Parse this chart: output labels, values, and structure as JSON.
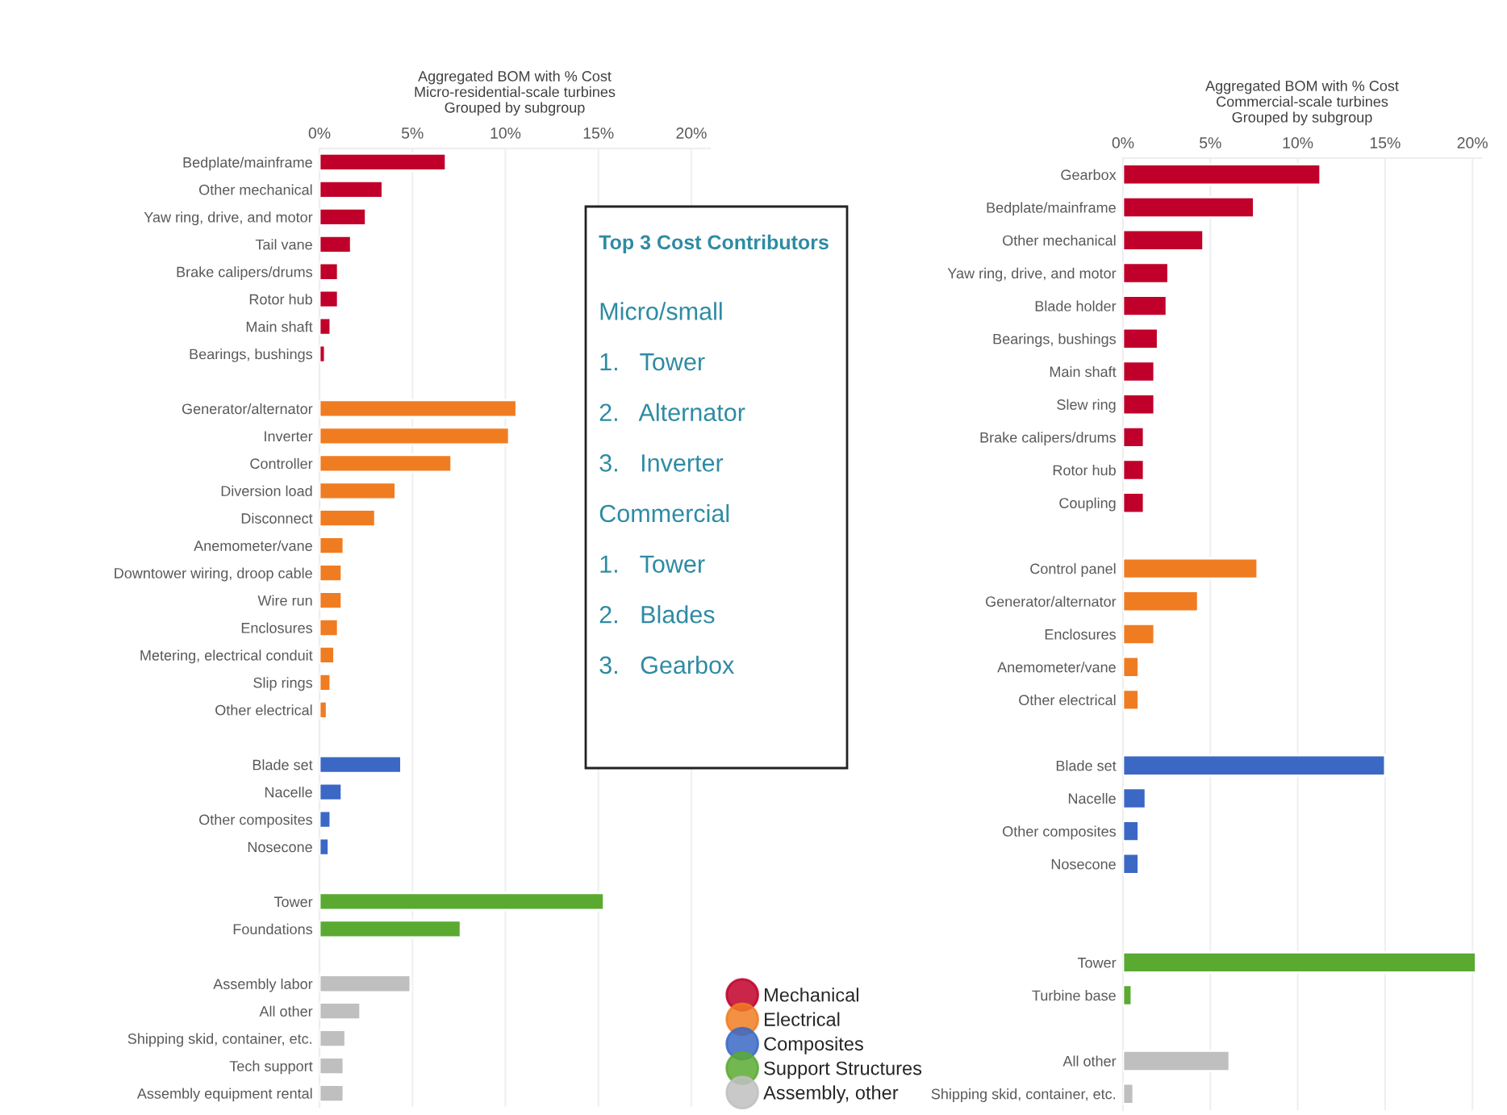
{
  "chart_data": [
    {
      "type": "bar",
      "orientation": "horizontal",
      "title": "Aggregated BOM with % Cost",
      "subtitle": "Micro-residential-scale turbines\nGrouped by subgroup",
      "categories": [
        "Bedplate/mainframe",
        "Other mechanical",
        "Yaw ring, drive, and motor",
        "Tail vane",
        "Brake calipers/drums",
        "Rotor hub",
        "Main shaft",
        "Bearings, bushings",
        null,
        "Generator/alternator",
        "Inverter",
        "Controller",
        "Diversion load",
        "Disconnect",
        "Anemometer/vane",
        "Downtower wiring, droop cable",
        "Wire run",
        "Enclosures",
        "Metering, electrical conduit",
        "Slip rings",
        "Other electrical",
        null,
        "Blade set",
        "Nacelle",
        "Other composites",
        "Nosecone",
        null,
        "Tower",
        "Foundations",
        null,
        "Assembly labor",
        "All other",
        "Shipping skid, container, etc.",
        "Tech support",
        "Assembly equipment rental"
      ],
      "series": [
        {
          "name": "Mechanical",
          "color": "#c0002a",
          "values": [
            6.8,
            3.4,
            2.5,
            1.7,
            1.0,
            1.0,
            0.6,
            0.3,
            null,
            null,
            null,
            null,
            null,
            null,
            null,
            null,
            null,
            null,
            null,
            null,
            null,
            null,
            null,
            null,
            null,
            null,
            null,
            null,
            null,
            null,
            null,
            null,
            null,
            null,
            null
          ]
        },
        {
          "name": "Electrical",
          "color": "#f07c22",
          "values": [
            null,
            null,
            null,
            null,
            null,
            null,
            null,
            null,
            null,
            10.6,
            10.2,
            7.1,
            4.1,
            3.0,
            1.3,
            1.2,
            1.2,
            1.0,
            0.8,
            0.6,
            0.4,
            null,
            null,
            null,
            null,
            null,
            null,
            null,
            null,
            null,
            null,
            null,
            null,
            null,
            null
          ]
        },
        {
          "name": "Composites",
          "color": "#3a68c4",
          "values": [
            null,
            null,
            null,
            null,
            null,
            null,
            null,
            null,
            null,
            null,
            null,
            null,
            null,
            null,
            null,
            null,
            null,
            null,
            null,
            null,
            null,
            null,
            4.4,
            1.2,
            0.6,
            0.5,
            null,
            null,
            null,
            null,
            null,
            null,
            null,
            null,
            null
          ]
        },
        {
          "name": "Support Structures",
          "color": "#5aaa32",
          "values": [
            null,
            null,
            null,
            null,
            null,
            null,
            null,
            null,
            null,
            null,
            null,
            null,
            null,
            null,
            null,
            null,
            null,
            null,
            null,
            null,
            null,
            null,
            null,
            null,
            null,
            null,
            null,
            15.3,
            7.6,
            null,
            null,
            null,
            null,
            null,
            null
          ]
        },
        {
          "name": "Assembly, other",
          "color": "#bfbfbf",
          "values": [
            null,
            null,
            null,
            null,
            null,
            null,
            null,
            null,
            null,
            null,
            null,
            null,
            null,
            null,
            null,
            null,
            null,
            null,
            null,
            null,
            null,
            null,
            null,
            null,
            null,
            null,
            null,
            null,
            null,
            null,
            4.9,
            2.2,
            1.4,
            1.3,
            1.3
          ]
        }
      ],
      "xlim": [
        0,
        21
      ],
      "xticks": [
        {
          "value": 0,
          "label": "0%"
        },
        {
          "value": 5,
          "label": "5%"
        },
        {
          "value": 10,
          "label": "10%"
        },
        {
          "value": 15,
          "label": "15%"
        },
        {
          "value": 20,
          "label": "20%"
        }
      ],
      "grid": "x",
      "legend": "bottom right"
    },
    {
      "type": "bar",
      "orientation": "horizontal",
      "title": "Aggregated BOM with % Cost",
      "subtitle": "Commercial-scale turbines\nGrouped by subgroup",
      "categories": [
        "Gearbox",
        "Bedplate/mainframe",
        "Other mechanical",
        "Yaw ring, drive, and motor",
        "Blade holder",
        "Bearings, bushings",
        "Main shaft",
        "Slew ring",
        "Brake calipers/drums",
        "Rotor hub",
        "Coupling",
        null,
        "Control panel",
        "Generator/alternator",
        "Enclosures",
        "Anemometer/vane",
        "Other electrical",
        null,
        "Blade set",
        "Nacelle",
        "Other composites",
        "Nosecone",
        null,
        null,
        "Tower",
        "Turbine base",
        null,
        "All other",
        "Shipping skid, container, etc."
      ],
      "series": [
        {
          "color": "#c0002a",
          "values": [
            11.3,
            7.5,
            4.6,
            2.6,
            2.5,
            2.0,
            1.8,
            1.8,
            1.2,
            1.2,
            1.2,
            null,
            null,
            null,
            null,
            null,
            null,
            null,
            null,
            null,
            null,
            null,
            null,
            null,
            null,
            null,
            null,
            null,
            null
          ]
        },
        {
          "color": "#f07c22",
          "values": [
            null,
            null,
            null,
            null,
            null,
            null,
            null,
            null,
            null,
            null,
            null,
            null,
            7.7,
            4.3,
            1.8,
            0.9,
            0.9,
            null,
            null,
            null,
            null,
            null,
            null,
            null,
            null,
            null,
            null,
            null,
            null
          ]
        },
        {
          "color": "#3a68c4",
          "values": [
            null,
            null,
            null,
            null,
            null,
            null,
            null,
            null,
            null,
            null,
            null,
            null,
            null,
            null,
            null,
            null,
            null,
            null,
            15.0,
            1.3,
            0.9,
            0.9,
            null,
            null,
            null,
            null,
            null,
            null,
            null
          ]
        },
        {
          "color": "#5aaa32",
          "values": [
            null,
            null,
            null,
            null,
            null,
            null,
            null,
            null,
            null,
            null,
            null,
            null,
            null,
            null,
            null,
            null,
            null,
            null,
            null,
            null,
            null,
            null,
            null,
            null,
            20.2,
            0.5,
            null,
            null,
            null
          ]
        },
        {
          "color": "#bfbfbf",
          "values": [
            null,
            null,
            null,
            null,
            null,
            null,
            null,
            null,
            null,
            null,
            null,
            null,
            null,
            null,
            null,
            null,
            null,
            null,
            null,
            null,
            null,
            null,
            null,
            null,
            null,
            null,
            null,
            6.1,
            0.6
          ]
        }
      ],
      "xlim": [
        0,
        20.5
      ],
      "xticks": [
        {
          "value": 0,
          "label": "0%"
        },
        {
          "value": 5,
          "label": "5%"
        },
        {
          "value": 10,
          "label": "10%"
        },
        {
          "value": 15,
          "label": "15%"
        },
        {
          "value": 20,
          "label": "20%"
        }
      ],
      "grid": "x"
    },
    {
      "type": "other",
      "title": "Top 3 Cost Contributors",
      "annotations": [
        "Micro/small",
        "1.   Tower",
        "2.   Alternator",
        "3.   Inverter",
        "Commercial",
        "1.   Tower",
        "2.   Blades",
        "3.   Gearbox"
      ]
    }
  ]
}
